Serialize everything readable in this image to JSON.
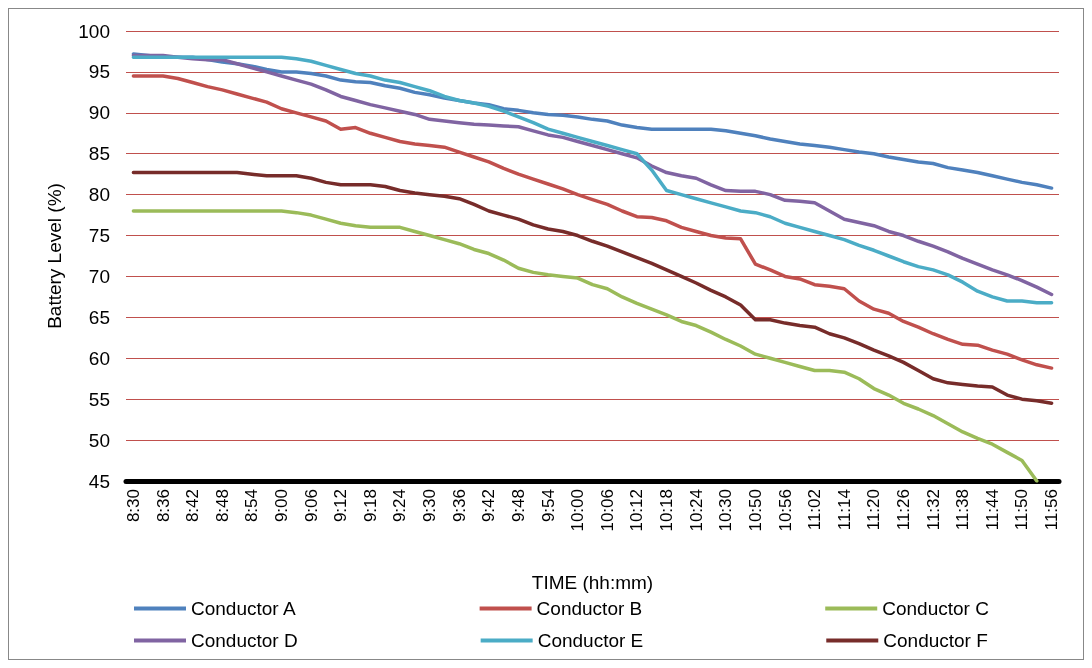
{
  "chart_data": {
    "type": "line",
    "xlabel": "TIME (hh:mm)",
    "ylabel": "Battery Level (%)",
    "categories": [
      "8:30",
      null,
      "8:36",
      null,
      "8:42",
      null,
      "8:48",
      null,
      "8:54",
      null,
      "9:00",
      null,
      "9:06",
      null,
      "9:12",
      null,
      "9:18",
      null,
      "9:24",
      null,
      "9:30",
      null,
      "9:36",
      null,
      "9:42",
      null,
      "9:48",
      null,
      "9:54",
      null,
      "10:00",
      null,
      "10:06",
      null,
      "10:12",
      null,
      "10:18",
      null,
      "10:24",
      null,
      "10:30",
      null,
      "10:50",
      null,
      "10:56",
      null,
      "11:02",
      null,
      "11:14",
      null,
      "11:20",
      null,
      "11:26",
      null,
      "11:32",
      null,
      "11:38",
      null,
      "11:44",
      null,
      "11:50",
      null,
      "11:56"
    ],
    "ylim": [
      45,
      100
    ],
    "yticks": [
      45,
      50,
      55,
      60,
      65,
      70,
      75,
      80,
      85,
      90,
      95,
      100
    ],
    "grid": "y",
    "legend": "bottom",
    "marker": "none",
    "line_style": "solid",
    "series": [
      {
        "name": "Conductor A",
        "color": "#4f81bd",
        "values": [
          97.2,
          97,
          96.8,
          96.8,
          96.8,
          96.5,
          96.2,
          96,
          95.7,
          95.3,
          95.0,
          95,
          94.8,
          94.5,
          94.0,
          93.8,
          93.7,
          93.3,
          93.0,
          92.5,
          92.2,
          91.8,
          91.5,
          91.2,
          91.0,
          90.5,
          90.3,
          90,
          89.8,
          89.7,
          89.5,
          89.2,
          89.0,
          88.5,
          88.2,
          88,
          88.0,
          88,
          88.0,
          88,
          87.8,
          87.5,
          87.2,
          86.8,
          86.5,
          86.2,
          86.0,
          85.8,
          85.5,
          85.2,
          85.0,
          84.6,
          84.3,
          84,
          83.8,
          83.3,
          83.0,
          82.7,
          82.3,
          81.9,
          81.5,
          81.2,
          80.8
        ]
      },
      {
        "name": "Conductor B",
        "color": "#c0504d",
        "values": [
          94.5,
          94.5,
          94.5,
          94.2,
          93.7,
          93.2,
          92.8,
          92.3,
          91.8,
          91.3,
          90.5,
          90,
          89.5,
          89,
          88,
          88.2,
          87.5,
          87,
          86.5,
          86.2,
          86,
          85.8,
          85.2,
          84.6,
          84,
          83.2,
          82.5,
          81.9,
          81.3,
          80.7,
          80,
          79.4,
          78.8,
          78,
          77.3,
          77.2,
          76.8,
          76,
          75.5,
          75,
          74.7,
          74.6,
          71.5,
          70.8,
          70,
          69.7,
          69,
          68.8,
          68.5,
          67,
          66,
          65.5,
          64.5,
          63.8,
          63,
          62.3,
          61.7,
          61.6,
          61,
          60.5,
          59.8,
          59.2,
          58.8
        ]
      },
      {
        "name": "Conductor C",
        "color": "#9bbb59",
        "values": [
          78,
          78,
          78,
          78,
          78,
          78,
          78,
          78,
          78,
          78,
          78,
          77.8,
          77.5,
          77,
          76.5,
          76.2,
          76,
          76,
          76,
          75.5,
          75,
          74.5,
          74,
          73.3,
          72.8,
          72,
          71,
          70.5,
          70.2,
          70,
          69.8,
          69,
          68.5,
          67.5,
          66.7,
          66,
          65.3,
          64.5,
          64,
          63.2,
          62.3,
          61.5,
          60.5,
          60,
          59.5,
          59,
          58.5,
          58.5,
          58.3,
          57.5,
          56.3,
          55.5,
          54.5,
          53.8,
          53,
          52,
          51,
          50.2,
          49.5,
          48.5,
          47.5,
          45,
          null
        ]
      },
      {
        "name": "Conductor D",
        "color": "#8064a2",
        "values": [
          97,
          97,
          97,
          96.8,
          96.6,
          96.5,
          96.5,
          96,
          95.5,
          95,
          94.5,
          94,
          93.5,
          92.8,
          92,
          91.5,
          91,
          90.6,
          90.2,
          89.8,
          89.2,
          89,
          88.8,
          88.6,
          88.5,
          88.4,
          88.3,
          87.8,
          87.3,
          87,
          86.5,
          86,
          85.5,
          85,
          84.5,
          83.5,
          82.7,
          82.3,
          82,
          81.2,
          80.5,
          80.4,
          80.4,
          80,
          79.3,
          79.2,
          79,
          78,
          77,
          76.6,
          76.2,
          75.5,
          75,
          74.3,
          73.7,
          73,
          72.2,
          71.5,
          70.8,
          70.2,
          69.5,
          68.7,
          67.8
        ]
      },
      {
        "name": "Conductor E",
        "color": "#4bacc6",
        "values": [
          96.8,
          96.8,
          96.8,
          96.8,
          96.8,
          96.8,
          96.8,
          96.8,
          96.8,
          96.8,
          96.8,
          96.6,
          96.3,
          95.8,
          95.3,
          94.8,
          94.5,
          94,
          93.7,
          93.2,
          92.7,
          92,
          91.5,
          91.2,
          90.8,
          90.2,
          89.5,
          88.8,
          88,
          87.5,
          87,
          86.5,
          86,
          85.5,
          85,
          83,
          80.5,
          80,
          79.5,
          79,
          78.5,
          78,
          77.8,
          77.3,
          76.5,
          76,
          75.5,
          75,
          74.5,
          73.8,
          73.2,
          72.5,
          71.8,
          71.2,
          70.8,
          70.2,
          69.3,
          68.2,
          67.5,
          67,
          67,
          66.8,
          66.8
        ]
      },
      {
        "name": "Conductor F",
        "color": "#772c2a",
        "values": [
          82.7,
          82.7,
          82.7,
          82.7,
          82.7,
          82.7,
          82.7,
          82.7,
          82.5,
          82.3,
          82.3,
          82.3,
          82,
          81.5,
          81.2,
          81.2,
          81.2,
          81,
          80.5,
          80.2,
          80,
          79.8,
          79.5,
          78.8,
          78,
          77.5,
          77,
          76.3,
          75.8,
          75.5,
          75,
          74.3,
          73.7,
          73,
          72.3,
          71.6,
          70.8,
          70,
          69.2,
          68.3,
          67.5,
          66.5,
          64.7,
          64.7,
          64.3,
          64,
          63.8,
          63,
          62.5,
          61.8,
          61,
          60.3,
          59.5,
          58.5,
          57.5,
          57,
          56.8,
          56.6,
          56.5,
          55.5,
          55,
          54.8,
          54.5
        ]
      }
    ]
  }
}
